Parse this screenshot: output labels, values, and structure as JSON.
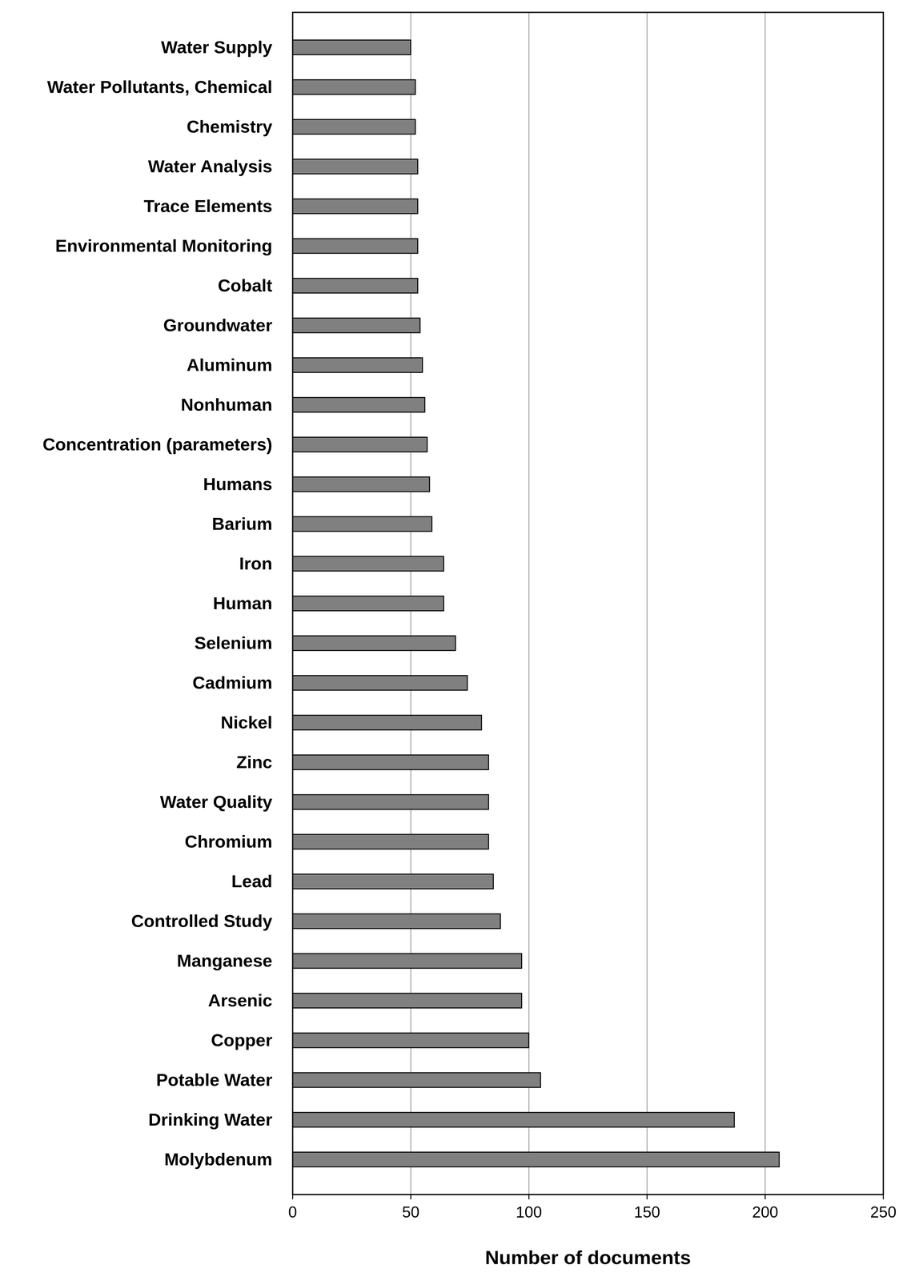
{
  "chart_data": {
    "type": "bar",
    "orientation": "horizontal",
    "categories": [
      "Water Supply",
      "Water Pollutants, Chemical",
      "Chemistry",
      "Water Analysis",
      "Trace Elements",
      "Environmental Monitoring",
      "Cobalt",
      "Groundwater",
      "Aluminum",
      "Nonhuman",
      "Concentration (parameters)",
      "Humans",
      "Barium",
      "Iron",
      "Human",
      "Selenium",
      "Cadmium",
      "Nickel",
      "Zinc",
      "Water Quality",
      "Chromium",
      "Lead",
      "Controlled Study",
      "Manganese",
      "Arsenic",
      "Copper",
      "Potable Water",
      "Drinking Water",
      "Molybdenum"
    ],
    "values": [
      50,
      52,
      52,
      53,
      53,
      53,
      53,
      54,
      55,
      56,
      57,
      58,
      59,
      64,
      64,
      69,
      74,
      80,
      83,
      83,
      83,
      85,
      88,
      97,
      97,
      100,
      105,
      187,
      206
    ],
    "color": "#808080",
    "x_label": "Number of documents",
    "xlim": [
      0,
      250
    ],
    "xticks": [
      0,
      50,
      100,
      150,
      200,
      250
    ],
    "grid": true
  }
}
